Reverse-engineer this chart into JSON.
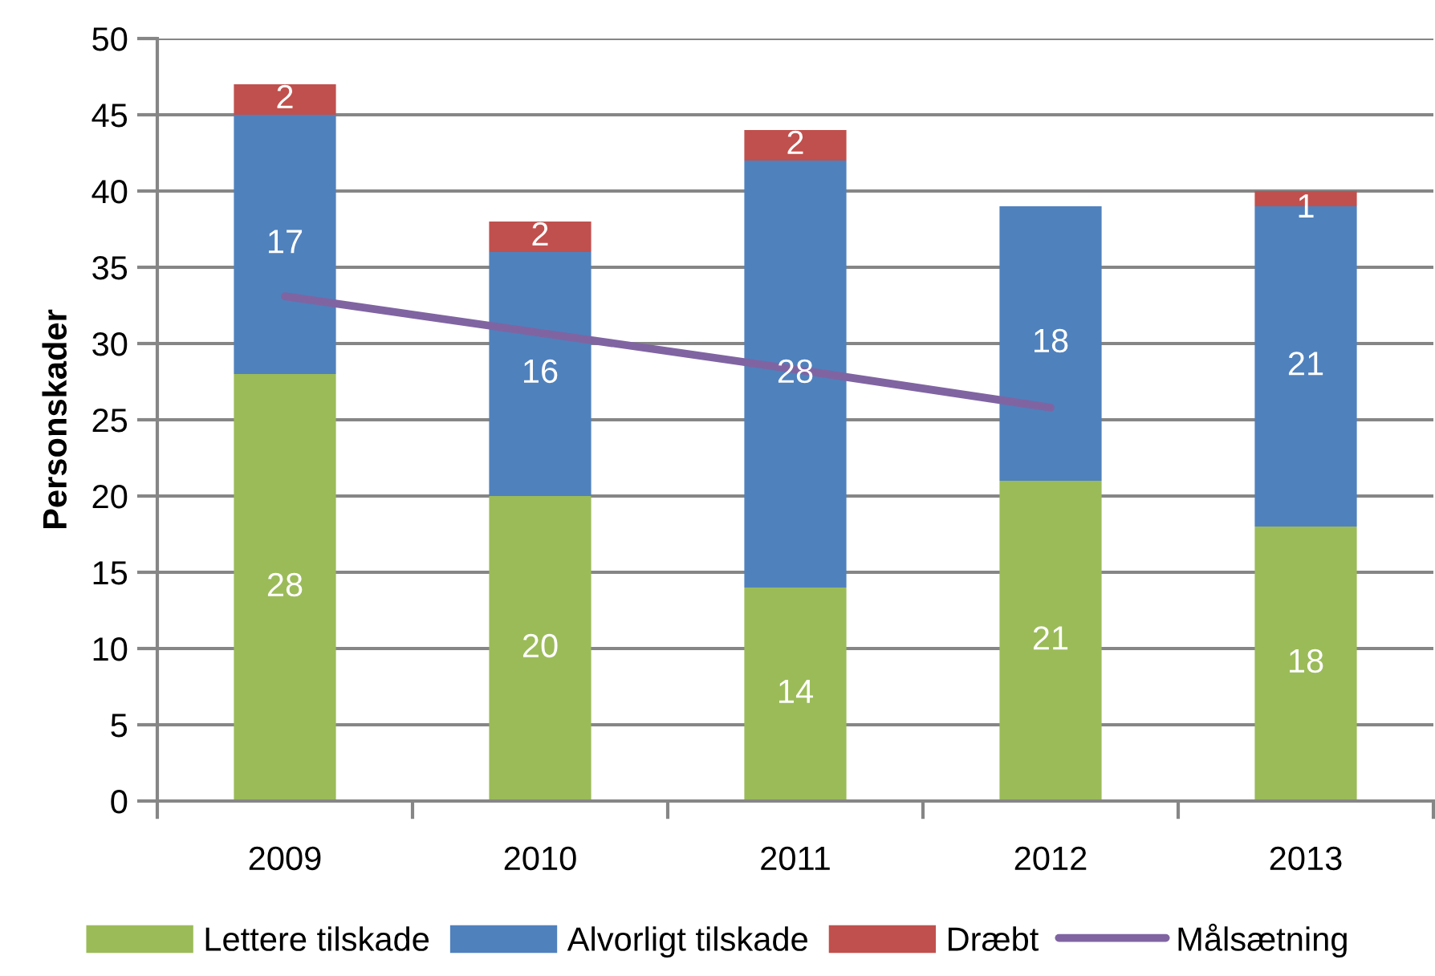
{
  "chart_data": {
    "type": "bar",
    "stacked": true,
    "ylabel": "Personskader",
    "categories": [
      "2009",
      "2010",
      "2011",
      "2012",
      "2013"
    ],
    "ylim": [
      0,
      50
    ],
    "yticks": [
      0,
      5,
      10,
      15,
      20,
      25,
      30,
      35,
      40,
      45,
      50
    ],
    "grid": "y",
    "legend": "bottom",
    "series": [
      {
        "name": "Lettere tilskade",
        "color": "#9bbb59",
        "values": [
          28,
          20,
          14,
          21,
          18
        ],
        "value_labels": [
          "28",
          "20",
          "14",
          "21",
          "18"
        ]
      },
      {
        "name": "Alvorligt tilskade",
        "color": "#4f81bd",
        "values": [
          17,
          16,
          28,
          18,
          21
        ],
        "value_labels": [
          "17",
          "16",
          "28",
          "18",
          "21"
        ]
      },
      {
        "name": "Dræbt",
        "color": "#c0504d",
        "values": [
          2,
          2,
          2,
          null,
          1
        ],
        "value_labels": [
          "2",
          "2",
          "2",
          null,
          "1"
        ]
      },
      {
        "name": "Målsætning",
        "type": "line",
        "color": "#8064a2",
        "values": [
          33.1,
          30.7,
          28.3,
          25.8,
          null
        ],
        "line_style": "solid",
        "marker": "none"
      }
    ]
  }
}
